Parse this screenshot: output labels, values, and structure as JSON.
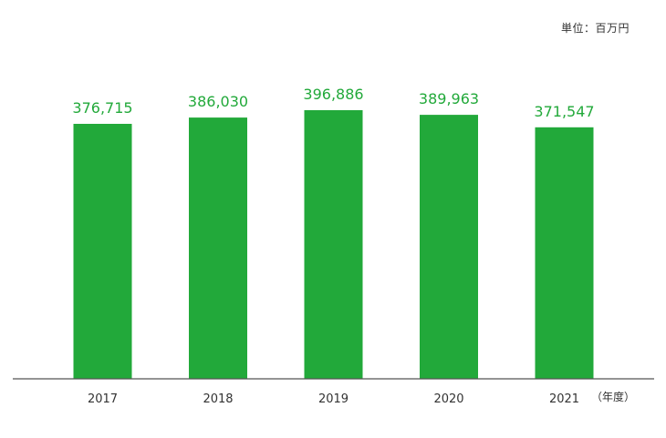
{
  "chart_data": {
    "type": "bar",
    "categories": [
      "2017",
      "2018",
      "2019",
      "2020",
      "2021"
    ],
    "values": [
      376715,
      386030,
      396886,
      389963,
      371547
    ],
    "value_labels": [
      "376,715",
      "386,030",
      "396,886",
      "389,963",
      "371,547"
    ],
    "unit_label": "単位：百万円",
    "x_unit_label": "（年度）",
    "ylim": [
      0,
      396886
    ],
    "grid": false,
    "legend": "none",
    "colors": {
      "bar": "#22a93a",
      "value_label": "#22a93a",
      "axis": "#555555",
      "tick_label": "#333333"
    }
  }
}
